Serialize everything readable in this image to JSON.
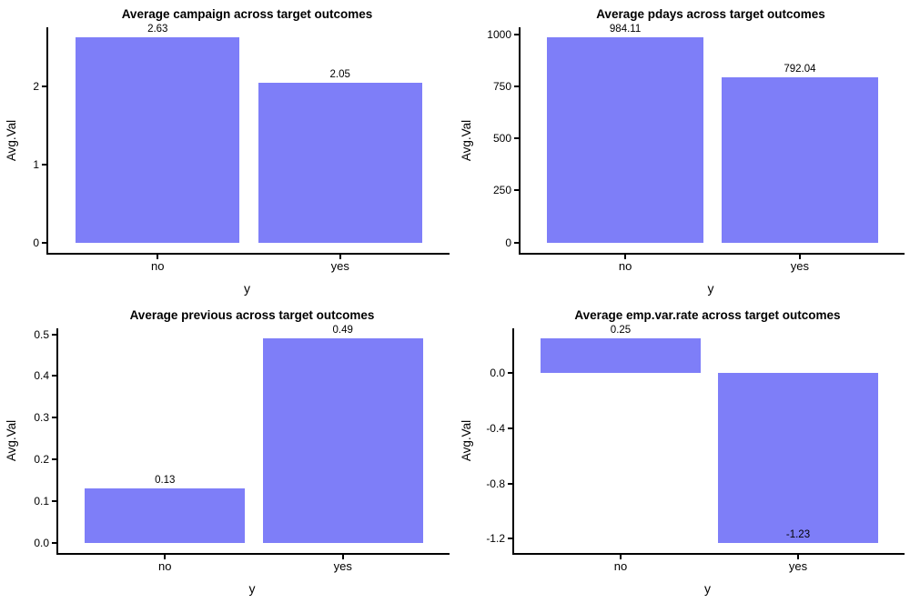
{
  "style": {
    "background": "#ffffff",
    "bar_color": "#7e7ef8",
    "axis_color": "#000000",
    "text_color": "#000000"
  },
  "chart_data": [
    {
      "type": "bar",
      "title": "Average campaign across target outcomes",
      "xlabel": "y",
      "ylabel": "Avg.Val",
      "categories": [
        "no",
        "yes"
      ],
      "values": [
        2.63,
        2.05
      ],
      "bar_labels": [
        "2.63",
        "2.05"
      ],
      "yticks": [
        0,
        1,
        2
      ],
      "ytick_labels": [
        "0",
        "1",
        "2"
      ],
      "ylim": [
        -0.1315,
        2.7615
      ],
      "grid": false,
      "legend": "none"
    },
    {
      "type": "bar",
      "title": "Average pdays across target outcomes",
      "xlabel": "y",
      "ylabel": "Avg.Val",
      "categories": [
        "no",
        "yes"
      ],
      "values": [
        984.11,
        792.04
      ],
      "bar_labels": [
        "984.11",
        "792.04"
      ],
      "yticks": [
        0,
        250,
        500,
        750,
        1000
      ],
      "ytick_labels": [
        "0",
        "250",
        "500",
        "750",
        "1000"
      ],
      "ylim": [
        -49.21,
        1033.32
      ],
      "grid": false,
      "legend": "none"
    },
    {
      "type": "bar",
      "title": "Average previous across target outcomes",
      "xlabel": "y",
      "ylabel": "Avg.Val",
      "categories": [
        "no",
        "yes"
      ],
      "values": [
        0.13,
        0.49
      ],
      "bar_labels": [
        "0.13",
        "0.49"
      ],
      "yticks": [
        0,
        0.1,
        0.2,
        0.3,
        0.4,
        0.5
      ],
      "ytick_labels": [
        "0.0",
        "0.1",
        "0.2",
        "0.3",
        "0.4",
        "0.5"
      ],
      "ylim": [
        -0.0245,
        0.5145
      ],
      "grid": false,
      "legend": "none"
    },
    {
      "type": "bar",
      "title": "Average emp.var.rate across target outcomes",
      "xlabel": "y",
      "ylabel": "Avg.Val",
      "categories": [
        "no",
        "yes"
      ],
      "values": [
        0.25,
        -1.23
      ],
      "bar_labels": [
        "0.25",
        "-1.23"
      ],
      "yticks": [
        0,
        -0.4,
        -0.8,
        -1.2
      ],
      "ytick_labels": [
        "0.0",
        "-0.4",
        "-0.8",
        "-1.2"
      ],
      "ylim": [
        -1.304,
        0.324
      ],
      "grid": false,
      "legend": "none"
    }
  ]
}
